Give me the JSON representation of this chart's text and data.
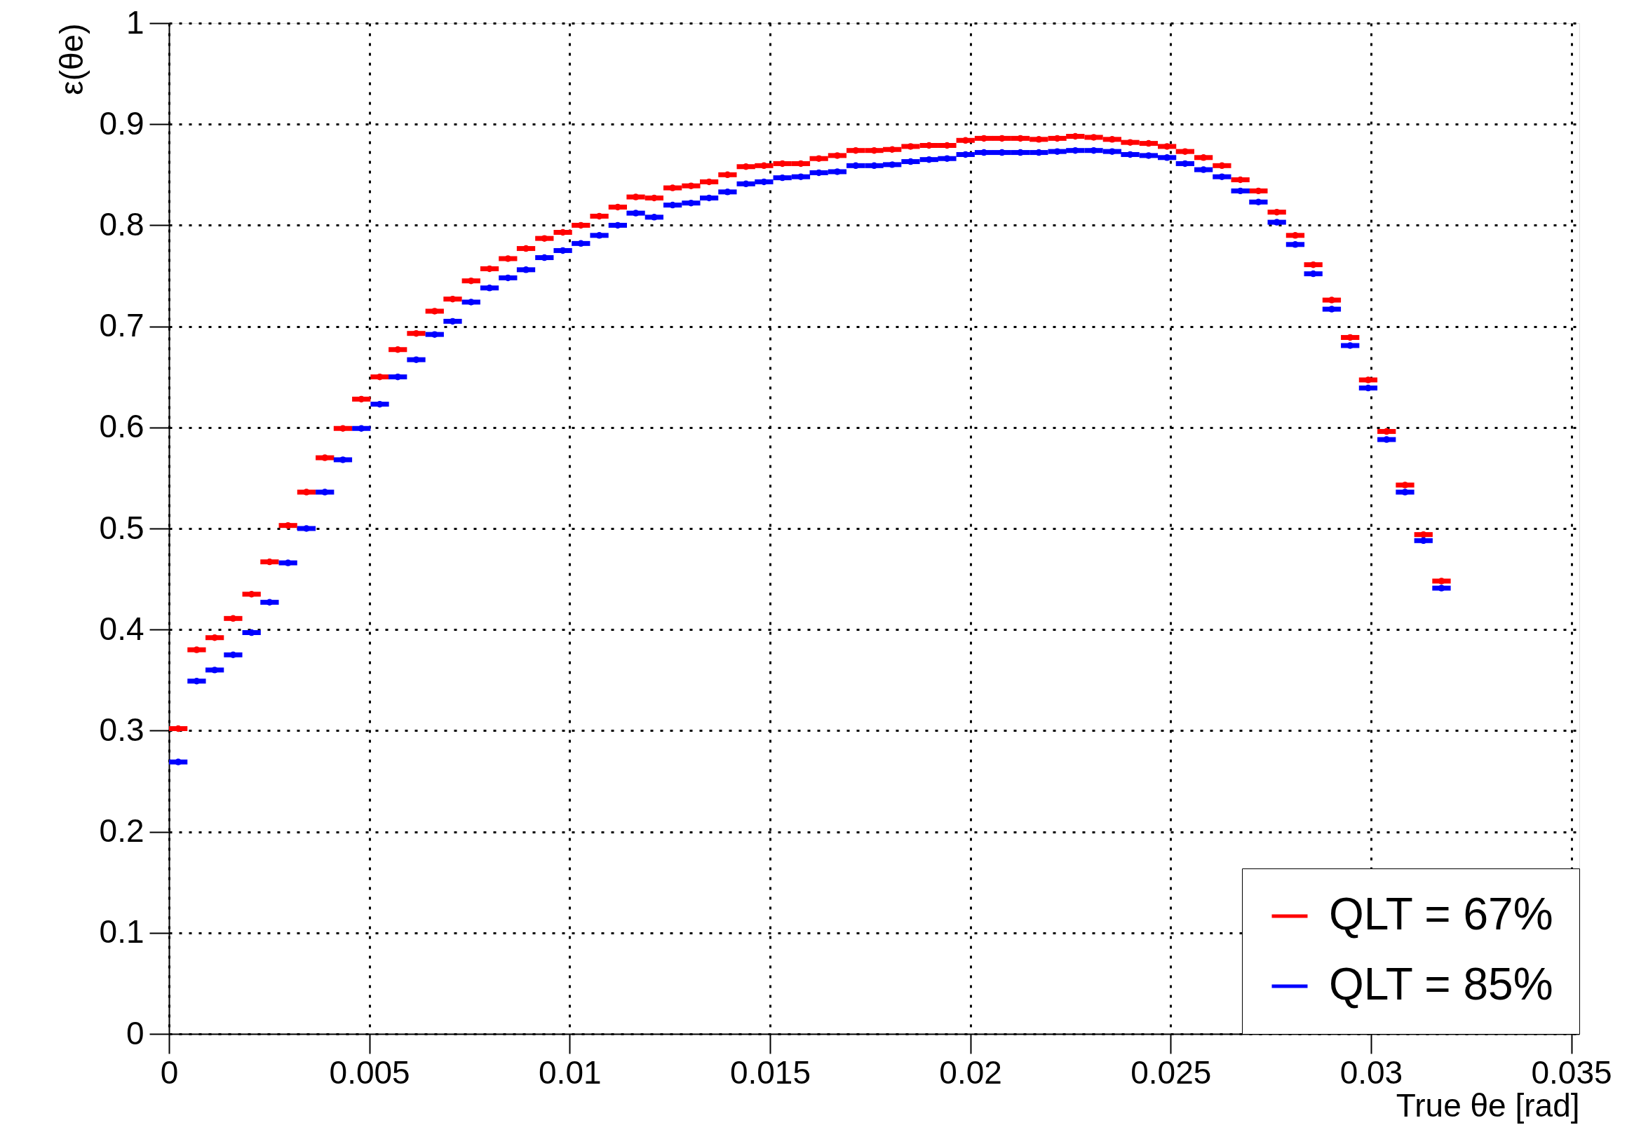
{
  "chart_data": {
    "type": "scatter",
    "xlabel": "True θe [rad]",
    "ylabel": "ε(θe)",
    "x": [
      0.00023,
      0.00069,
      0.00114,
      0.0016,
      0.00206,
      0.00251,
      0.00297,
      0.00343,
      0.00389,
      0.00434,
      0.0048,
      0.00526,
      0.00571,
      0.00617,
      0.00663,
      0.00708,
      0.00754,
      0.008,
      0.00846,
      0.00891,
      0.00937,
      0.00983,
      0.01028,
      0.01074,
      0.0112,
      0.01165,
      0.01211,
      0.01257,
      0.01303,
      0.01348,
      0.01394,
      0.0144,
      0.01485,
      0.01531,
      0.01577,
      0.01622,
      0.01668,
      0.01714,
      0.0176,
      0.01805,
      0.01851,
      0.01897,
      0.01942,
      0.01988,
      0.02034,
      0.02079,
      0.02125,
      0.02171,
      0.02217,
      0.02262,
      0.02308,
      0.02354,
      0.02399,
      0.02445,
      0.02491,
      0.02536,
      0.02582,
      0.02628,
      0.02674,
      0.02719,
      0.02765,
      0.02811,
      0.02856,
      0.02902,
      0.02948,
      0.02993,
      0.03039,
      0.03085,
      0.03131,
      0.03176
    ],
    "series": [
      {
        "name": "QLT = 67%",
        "color": "#ff0000",
        "xerrors": [
          0.00023,
          0.00023,
          0.00023,
          0.00023,
          0.00023,
          0.00023,
          0.00023,
          0.00023,
          0.00023,
          0.00023,
          0.00023,
          0.00023,
          0.00023,
          0.00023,
          0.00023,
          0.00023,
          0.00023,
          0.00023,
          0.00023,
          0.00023,
          0.00023,
          0.00023,
          0.00023,
          0.00023,
          0.00023,
          0.00023,
          0.00023,
          0.00023,
          0.00023,
          0.00023,
          0.00023,
          0.00023,
          0.00023,
          0.00023,
          0.00023,
          0.00023,
          0.00023,
          0.00023,
          0.00023,
          0.00023,
          0.00023,
          0.00023,
          0.00023,
          0.00023,
          0.00023,
          0.00023,
          0.00023,
          0.00023,
          0.00023,
          0.00023,
          0.00023,
          0.00023,
          0.00023,
          0.00023,
          0.00023,
          0.00023,
          0.00023,
          0.00023,
          0.00023,
          0.00023,
          0.00023,
          0.00023,
          0.00023,
          0.00023,
          0.00023,
          0.00023,
          0.00023,
          0.00023,
          0.00023,
          0.00023
        ],
        "values": [
          0.302,
          0.38,
          0.392,
          0.411,
          0.435,
          0.467,
          0.503,
          0.536,
          0.57,
          0.599,
          0.628,
          0.65,
          0.677,
          0.693,
          0.715,
          0.727,
          0.745,
          0.757,
          0.767,
          0.777,
          0.787,
          0.793,
          0.8,
          0.809,
          0.818,
          0.828,
          0.827,
          0.837,
          0.839,
          0.843,
          0.85,
          0.858,
          0.859,
          0.861,
          0.861,
          0.866,
          0.869,
          0.874,
          0.874,
          0.875,
          0.878,
          0.879,
          0.879,
          0.884,
          0.886,
          0.886,
          0.886,
          0.885,
          0.886,
          0.888,
          0.887,
          0.885,
          0.882,
          0.881,
          0.878,
          0.873,
          0.867,
          0.859,
          0.845,
          0.834,
          0.813,
          0.79,
          0.761,
          0.726,
          0.689,
          0.647,
          0.596,
          0.543,
          0.494,
          0.448
        ]
      },
      {
        "name": "QLT = 85%",
        "color": "#0000ff",
        "xerrors": [
          0.00023,
          0.00023,
          0.00023,
          0.00023,
          0.00023,
          0.00023,
          0.00023,
          0.00023,
          0.00023,
          0.00023,
          0.00023,
          0.00023,
          0.00023,
          0.00023,
          0.00023,
          0.00023,
          0.00023,
          0.00023,
          0.00023,
          0.00023,
          0.00023,
          0.00023,
          0.00023,
          0.00023,
          0.00023,
          0.00023,
          0.00023,
          0.00023,
          0.00023,
          0.00023,
          0.00023,
          0.00023,
          0.00023,
          0.00023,
          0.00023,
          0.00023,
          0.00023,
          0.00023,
          0.00023,
          0.00023,
          0.00023,
          0.00023,
          0.00023,
          0.00023,
          0.00023,
          0.00023,
          0.00023,
          0.00023,
          0.00023,
          0.00023,
          0.00023,
          0.00023,
          0.00023,
          0.00023,
          0.00023,
          0.00023,
          0.00023,
          0.00023,
          0.00023,
          0.00023,
          0.00023,
          0.00023,
          0.00023,
          0.00023,
          0.00023,
          0.00023,
          0.00023,
          0.00023,
          0.00023,
          0.00023
        ],
        "values": [
          0.269,
          0.349,
          0.36,
          0.375,
          0.397,
          0.427,
          0.466,
          0.5,
          0.536,
          0.568,
          0.599,
          0.623,
          0.65,
          0.667,
          0.692,
          0.705,
          0.724,
          0.738,
          0.748,
          0.756,
          0.768,
          0.775,
          0.782,
          0.79,
          0.8,
          0.812,
          0.808,
          0.82,
          0.822,
          0.827,
          0.833,
          0.841,
          0.843,
          0.847,
          0.848,
          0.852,
          0.853,
          0.859,
          0.859,
          0.86,
          0.863,
          0.865,
          0.866,
          0.87,
          0.872,
          0.872,
          0.872,
          0.872,
          0.873,
          0.874,
          0.874,
          0.873,
          0.87,
          0.869,
          0.867,
          0.861,
          0.855,
          0.848,
          0.834,
          0.823,
          0.803,
          0.781,
          0.752,
          0.717,
          0.681,
          0.639,
          0.588,
          0.536,
          0.488,
          0.441
        ]
      }
    ],
    "xlim": [
      0,
      0.0352
    ],
    "ylim": [
      0,
      1
    ],
    "xticks": [
      0,
      0.005,
      0.01,
      0.015,
      0.02,
      0.025,
      0.03,
      0.035
    ],
    "yticks": [
      0,
      0.1,
      0.2,
      0.3,
      0.4,
      0.5,
      0.6,
      0.7,
      0.8,
      0.9,
      1
    ],
    "grid": true,
    "legend": "bottom right",
    "marker": "circle"
  }
}
